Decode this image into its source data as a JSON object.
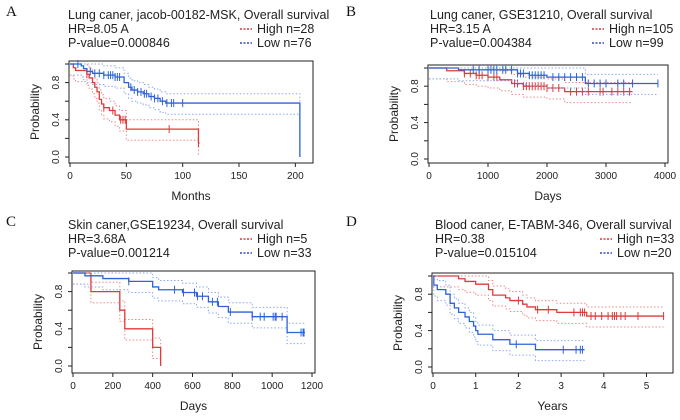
{
  "chart_data": [
    {
      "type": "line",
      "panel_label": "A",
      "title": "Lung caner, jacob-00182-MSK,  Overall survival",
      "hr": "HR=8.05 A",
      "pvalue": "P-value=0.000846",
      "xlabel": "Months",
      "ylabel": "Probability",
      "xlim": [
        0,
        213
      ],
      "ylim": [
        0,
        1
      ],
      "xticks": [
        "0",
        "50",
        "100",
        "150",
        "200"
      ],
      "xtick_values": [
        0,
        50,
        100,
        150,
        200
      ],
      "yticks": [
        "0.0",
        "0.4",
        "0.8"
      ],
      "ytick_values": [
        0,
        0.4,
        0.8
      ],
      "series": [
        {
          "name": "High n=28",
          "color": "#e03a3a",
          "steps": [
            [
              0,
              1
            ],
            [
              3,
              0.96
            ],
            [
              5,
              0.93
            ],
            [
              15,
              0.89
            ],
            [
              17,
              0.85
            ],
            [
              20,
              0.8
            ],
            [
              22,
              0.75
            ],
            [
              24,
              0.7
            ],
            [
              26,
              0.62
            ],
            [
              28,
              0.57
            ],
            [
              30,
              0.53
            ],
            [
              35,
              0.5
            ],
            [
              40,
              0.45
            ],
            [
              44,
              0.4
            ],
            [
              50,
              0.3
            ],
            [
              114,
              0.15
            ]
          ],
          "end": 115,
          "censored": [
            15,
            30,
            38,
            45,
            47,
            49,
            88,
            114
          ]
        },
        {
          "name": "Low n=76",
          "color": "#2e62d9",
          "steps": [
            [
              0,
              1
            ],
            [
              10,
              0.98
            ],
            [
              12,
              0.95
            ],
            [
              15,
              0.92
            ],
            [
              20,
              0.9
            ],
            [
              30,
              0.88
            ],
            [
              40,
              0.86
            ],
            [
              48,
              0.8
            ],
            [
              52,
              0.75
            ],
            [
              55,
              0.72
            ],
            [
              60,
              0.7
            ],
            [
              65,
              0.68
            ],
            [
              70,
              0.65
            ],
            [
              75,
              0.63
            ],
            [
              80,
              0.6
            ],
            [
              85,
              0.58
            ],
            [
              204,
              0
            ]
          ],
          "end": 204,
          "censored": [
            7,
            18,
            22,
            26,
            30,
            34,
            36,
            38,
            40,
            42,
            44,
            54,
            57,
            60,
            63,
            66,
            68,
            72,
            75,
            78,
            82,
            86,
            90,
            92,
            100
          ]
        }
      ]
    },
    {
      "type": "line",
      "panel_label": "B",
      "title": "Lung caner, GSE31210, Overall survival",
      "hr": "HR=3.15 A",
      "pvalue": "P-value=0.004384",
      "xlabel": "Days",
      "ylabel": "Probability",
      "xlim": [
        0,
        4000
      ],
      "ylim": [
        0,
        1
      ],
      "xticks": [
        "0",
        "1000",
        "2000",
        "3000",
        "4000"
      ],
      "xtick_values": [
        0,
        1000,
        2000,
        3000,
        4000
      ],
      "yticks": [
        "0.0",
        "0.4",
        "0.8"
      ],
      "ytick_values": [
        0,
        0.4,
        0.8
      ],
      "series": [
        {
          "name": "High n=105",
          "color": "#e03a3a",
          "steps": [
            [
              0,
              1
            ],
            [
              300,
              0.97
            ],
            [
              600,
              0.94
            ],
            [
              800,
              0.92
            ],
            [
              1000,
              0.9
            ],
            [
              1200,
              0.87
            ],
            [
              1400,
              0.83
            ],
            [
              1600,
              0.8
            ],
            [
              2000,
              0.78
            ],
            [
              2300,
              0.74
            ]
          ],
          "end": 3450,
          "censored": [
            600,
            700,
            800,
            850,
            900,
            1000,
            1100,
            1150,
            1450,
            1500,
            1600,
            1650,
            1700,
            1750,
            1800,
            1850,
            1900,
            1950,
            2000,
            2100,
            2200,
            2400,
            2500,
            2600,
            2700,
            2900,
            2950,
            3100,
            3200,
            3300,
            3400
          ]
        },
        {
          "name": "Low n=99",
          "color": "#2e62d9",
          "steps": [
            [
              0,
              1
            ],
            [
              500,
              0.98
            ],
            [
              1500,
              0.94
            ],
            [
              1700,
              0.92
            ],
            [
              2000,
              0.9
            ],
            [
              2650,
              0.83
            ]
          ],
          "end": 3880,
          "censored": [
            750,
            850,
            1000,
            1050,
            1100,
            1150,
            1250,
            1300,
            1400,
            1500,
            1550,
            1600,
            1700,
            1750,
            1800,
            1850,
            1900,
            1950,
            2100,
            2200,
            2300,
            2400,
            2500,
            2600,
            2700,
            2800,
            2900,
            3000,
            3200,
            3300,
            3450,
            3880
          ]
        }
      ]
    },
    {
      "type": "line",
      "panel_label": "C",
      "title": "Skin caner,GSE19234, Overall survival",
      "hr": "HR=3.68A",
      "pvalue": "P-value=0.001214",
      "xlabel": "Days",
      "ylabel": "Probability",
      "xlim": [
        0,
        1200
      ],
      "ylim": [
        0,
        1
      ],
      "xticks": [
        "0",
        "200",
        "400",
        "600",
        "800",
        "1000",
        "1200"
      ],
      "xtick_values": [
        0,
        200,
        400,
        600,
        800,
        1000,
        1200
      ],
      "yticks": [
        "0.0",
        "0.4",
        "0.8"
      ],
      "ytick_values": [
        0,
        0.4,
        0.8
      ],
      "series": [
        {
          "name": "High n=5",
          "color": "#e03a3a",
          "steps": [
            [
              0,
              1
            ],
            [
              90,
              0.8
            ],
            [
              235,
              0.6
            ],
            [
              260,
              0.4
            ],
            [
              400,
              0.2
            ],
            [
              440,
              0
            ]
          ],
          "end": 440,
          "censored": []
        },
        {
          "name": "Low n=33",
          "color": "#2e62d9",
          "steps": [
            [
              0,
              1
            ],
            [
              60,
              0.97
            ],
            [
              150,
              0.94
            ],
            [
              280,
              0.91
            ],
            [
              400,
              0.85
            ],
            [
              430,
              0.82
            ],
            [
              550,
              0.79
            ],
            [
              620,
              0.75
            ],
            [
              680,
              0.69
            ],
            [
              730,
              0.64
            ],
            [
              780,
              0.58
            ],
            [
              900,
              0.53
            ],
            [
              1075,
              0.36
            ]
          ],
          "end": 1165,
          "censored": [
            280,
            510,
            555,
            610,
            625,
            650,
            700,
            725,
            790,
            900,
            940,
            960,
            1005,
            1015,
            1020,
            1050,
            1145,
            1155,
            1160
          ]
        }
      ]
    },
    {
      "type": "line",
      "panel_label": "D",
      "title": "Blood caner, E-TABM-346,  Overall survival",
      "hr": "HR=0.38",
      "pvalue": "P-value=0.015104",
      "xlabel": "Years",
      "ylabel": "Probability",
      "xlim": [
        0,
        5.55
      ],
      "ylim": [
        0,
        1
      ],
      "xticks": [
        "0",
        "1",
        "2",
        "3",
        "4",
        "5"
      ],
      "xtick_values": [
        0,
        1,
        2,
        3,
        4,
        5
      ],
      "yticks": [
        "0.0",
        "0.4",
        "0.8"
      ],
      "ytick_values": [
        0,
        0.4,
        0.8
      ],
      "series": [
        {
          "name": "High n=33",
          "color": "#e03a3a",
          "steps": [
            [
              0,
              1
            ],
            [
              0.6,
              0.97
            ],
            [
              0.75,
              0.94
            ],
            [
              1.0,
              0.91
            ],
            [
              1.3,
              0.85
            ],
            [
              1.4,
              0.79
            ],
            [
              1.7,
              0.76
            ],
            [
              1.8,
              0.73
            ],
            [
              2.1,
              0.69
            ],
            [
              2.2,
              0.66
            ],
            [
              2.4,
              0.63
            ],
            [
              2.9,
              0.6
            ],
            [
              3.6,
              0.56
            ]
          ],
          "end": 5.4,
          "censored": [
            2.0,
            2.45,
            2.7,
            3.3,
            3.45,
            3.5,
            3.55,
            3.7,
            3.8,
            3.95,
            4.1,
            4.2,
            4.25,
            4.3,
            4.4,
            4.5,
            4.8,
            5.4
          ]
        },
        {
          "name": "Low n=20",
          "color": "#2e62d9",
          "steps": [
            [
              0,
              1
            ],
            [
              0.02,
              0.9
            ],
            [
              0.1,
              0.85
            ],
            [
              0.3,
              0.8
            ],
            [
              0.4,
              0.7
            ],
            [
              0.5,
              0.65
            ],
            [
              0.6,
              0.6
            ],
            [
              0.75,
              0.55
            ],
            [
              0.85,
              0.5
            ],
            [
              0.95,
              0.45
            ],
            [
              1.0,
              0.4
            ],
            [
              1.05,
              0.36
            ],
            [
              1.4,
              0.3
            ],
            [
              1.8,
              0.25
            ],
            [
              2.4,
              0.19
            ]
          ],
          "end": 3.55,
          "censored": [
            1.95,
            3.05,
            3.35,
            3.45,
            3.5
          ]
        }
      ]
    }
  ]
}
